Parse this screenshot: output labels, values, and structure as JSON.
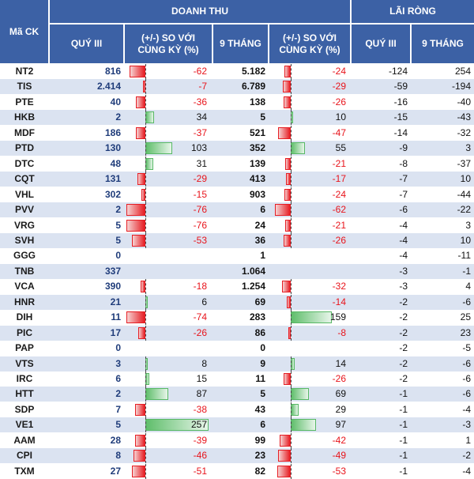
{
  "header": {
    "ma_ck": "Mã CK",
    "doanh_thu": "DOANH THU",
    "lai_rong": "LÃI RÒNG",
    "quy3": "QUÝ III",
    "pct_q": "(+/-) SO VỚI CÙNG KỲ (%)",
    "nine_months": "9 THÁNG",
    "pct_9": "(+/-) SO VỚI CÙNG KỲ (%)",
    "lr_quy3": "QUÝ III",
    "lr_9": "9 THÁNG"
  },
  "colors": {
    "header_bg": "#3c61a5",
    "neg_bar": "#e61e24",
    "pos_bar": "#5fbe6b",
    "alt_row": "#dbe3f1"
  },
  "rows": [
    {
      "code": "NT2",
      "q3": "816",
      "pq": "-62",
      "pqv": -62,
      "m9": "5.182",
      "p9": "-24",
      "p9v": -24,
      "lq3": "-124",
      "l9": "254"
    },
    {
      "code": "TIS",
      "q3": "2.414",
      "pq": "-7",
      "pqv": -7,
      "m9": "6.789",
      "p9": "-29",
      "p9v": -29,
      "lq3": "-59",
      "l9": "-194"
    },
    {
      "code": "PTE",
      "q3": "40",
      "pq": "-36",
      "pqv": -36,
      "m9": "138",
      "p9": "-26",
      "p9v": -26,
      "lq3": "-16",
      "l9": "-40"
    },
    {
      "code": "HKB",
      "q3": "2",
      "pq": "34",
      "pqv": 34,
      "m9": "5",
      "p9": "10",
      "p9v": 10,
      "lq3": "-15",
      "l9": "-43"
    },
    {
      "code": "MDF",
      "q3": "186",
      "pq": "-37",
      "pqv": -37,
      "m9": "521",
      "p9": "-47",
      "p9v": -47,
      "lq3": "-14",
      "l9": "-32"
    },
    {
      "code": "PTD",
      "q3": "130",
      "pq": "103",
      "pqv": 103,
      "m9": "352",
      "p9": "55",
      "p9v": 55,
      "lq3": "-9",
      "l9": "3"
    },
    {
      "code": "DTC",
      "q3": "48",
      "pq": "31",
      "pqv": 31,
      "m9": "139",
      "p9": "-21",
      "p9v": -21,
      "lq3": "-8",
      "l9": "-37"
    },
    {
      "code": "CQT",
      "q3": "131",
      "pq": "-29",
      "pqv": -29,
      "m9": "413",
      "p9": "-17",
      "p9v": -17,
      "lq3": "-7",
      "l9": "10"
    },
    {
      "code": "VHL",
      "q3": "302",
      "pq": "-15",
      "pqv": -15,
      "m9": "903",
      "p9": "-24",
      "p9v": -24,
      "lq3": "-7",
      "l9": "-44"
    },
    {
      "code": "PVV",
      "q3": "2",
      "pq": "-76",
      "pqv": -76,
      "m9": "6",
      "p9": "-62",
      "p9v": -62,
      "lq3": "-6",
      "l9": "-22"
    },
    {
      "code": "VRG",
      "q3": "5",
      "pq": "-76",
      "pqv": -76,
      "m9": "24",
      "p9": "-21",
      "p9v": -21,
      "lq3": "-4",
      "l9": "3"
    },
    {
      "code": "SVH",
      "q3": "5",
      "pq": "-53",
      "pqv": -53,
      "m9": "36",
      "p9": "-26",
      "p9v": -26,
      "lq3": "-4",
      "l9": "10"
    },
    {
      "code": "GGG",
      "q3": "0",
      "pq": "",
      "pqv": null,
      "m9": "1",
      "p9": "",
      "p9v": null,
      "lq3": "-4",
      "l9": "-11"
    },
    {
      "code": "TNB",
      "q3": "337",
      "pq": "",
      "pqv": null,
      "m9": "1.064",
      "p9": "",
      "p9v": null,
      "lq3": "-3",
      "l9": "-1"
    },
    {
      "code": "VCA",
      "q3": "390",
      "pq": "-18",
      "pqv": -18,
      "m9": "1.254",
      "p9": "-32",
      "p9v": -32,
      "lq3": "-3",
      "l9": "4"
    },
    {
      "code": "HNR",
      "q3": "21",
      "pq": "6",
      "pqv": 6,
      "m9": "69",
      "p9": "-14",
      "p9v": -14,
      "lq3": "-2",
      "l9": "-6"
    },
    {
      "code": "DIH",
      "q3": "11",
      "pq": "-74",
      "pqv": -74,
      "m9": "283",
      "p9": "159",
      "p9v": 159,
      "lq3": "-2",
      "l9": "25"
    },
    {
      "code": "PIC",
      "q3": "17",
      "pq": "-26",
      "pqv": -26,
      "m9": "86",
      "p9": "-8",
      "p9v": -8,
      "lq3": "-2",
      "l9": "23"
    },
    {
      "code": "PAP",
      "q3": "0",
      "pq": "",
      "pqv": null,
      "m9": "0",
      "p9": "",
      "p9v": null,
      "lq3": "-2",
      "l9": "-5"
    },
    {
      "code": "VTS",
      "q3": "3",
      "pq": "8",
      "pqv": 8,
      "m9": "9",
      "p9": "14",
      "p9v": 14,
      "lq3": "-2",
      "l9": "-6"
    },
    {
      "code": "IRC",
      "q3": "6",
      "pq": "15",
      "pqv": 15,
      "m9": "11",
      "p9": "-26",
      "p9v": -26,
      "lq3": "-2",
      "l9": "-6"
    },
    {
      "code": "HTT",
      "q3": "2",
      "pq": "87",
      "pqv": 87,
      "m9": "5",
      "p9": "69",
      "p9v": 69,
      "lq3": "-1",
      "l9": "-6"
    },
    {
      "code": "SDP",
      "q3": "7",
      "pq": "-38",
      "pqv": -38,
      "m9": "43",
      "p9": "29",
      "p9v": 29,
      "lq3": "-1",
      "l9": "-4"
    },
    {
      "code": "VE1",
      "q3": "5",
      "pq": "257",
      "pqv": 257,
      "m9": "6",
      "p9": "97",
      "p9v": 97,
      "lq3": "-1",
      "l9": "-3"
    },
    {
      "code": "AAM",
      "q3": "28",
      "pq": "-39",
      "pqv": -39,
      "m9": "99",
      "p9": "-42",
      "p9v": -42,
      "lq3": "-1",
      "l9": "1"
    },
    {
      "code": "CPI",
      "q3": "8",
      "pq": "-46",
      "pqv": -46,
      "m9": "23",
      "p9": "-49",
      "p9v": -49,
      "lq3": "-1",
      "l9": "-2"
    },
    {
      "code": "TXM",
      "q3": "27",
      "pq": "-51",
      "pqv": -51,
      "m9": "82",
      "p9": "-53",
      "p9v": -53,
      "lq3": "-1",
      "l9": "-4"
    }
  ]
}
